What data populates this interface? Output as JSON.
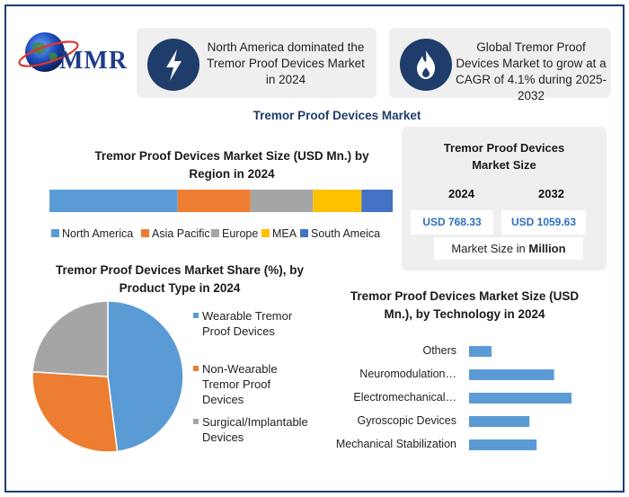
{
  "brand": {
    "name": "MMR"
  },
  "cards": [
    {
      "text": "North America dominated the Tremor Proof Devices Market in 2024",
      "icon": "lightning-icon"
    },
    {
      "text": "Global Tremor Proof Devices Market to grow at a CAGR of 4.1% during 2025-2032",
      "icon": "flame-icon"
    }
  ],
  "main_title": "Tremor Proof Devices Market",
  "market_size": {
    "title": "Tremor Proof Devices Market Size",
    "year1": "2024",
    "year2": "2032",
    "value1": "USD 768.33",
    "value2": "USD 1059.63",
    "unit_prefix": "Market Size in ",
    "unit_bold": "Million"
  },
  "colors": {
    "north_america": "#5b9bd5",
    "asia_pacific": "#ed7d31",
    "europe": "#a5a5a5",
    "mea": "#ffc000",
    "south_america": "#4472c4",
    "dark_navy": "#1f3d6b"
  },
  "chart_data": [
    {
      "type": "bar",
      "orientation": "horizontal-stacked",
      "title": "Tremor Proof Devices Market Size (USD Mn.) by Region in 2024",
      "series": [
        {
          "name": "North America",
          "values": [
            37
          ]
        },
        {
          "name": "Asia Pacific",
          "values": [
            21
          ]
        },
        {
          "name": "Europe",
          "values": [
            18
          ]
        },
        {
          "name": "MEA",
          "values": [
            14
          ]
        },
        {
          "name": "South Ameica",
          "values": [
            9
          ]
        }
      ],
      "legend": "bottom"
    },
    {
      "type": "pie",
      "title": "Tremor Proof Devices Market Share (%), by Product Type in 2024",
      "labels": [
        "Wearable Tremor Proof Devices",
        "Non-Wearable Tremor Proof Devices",
        "Surgical/Implantable Devices"
      ],
      "values": [
        48,
        28,
        24
      ],
      "legend": "right"
    },
    {
      "type": "bar",
      "orientation": "horizontal",
      "title": "Tremor Proof Devices Market Size (USD Mn.), by Technology in 2024",
      "categories": [
        "Others",
        "Neuromodulation…",
        "Electromechanical…",
        "Gyroscopic Devices",
        "Mechanical Stabilization"
      ],
      "values": [
        22,
        83,
        100,
        59,
        66
      ],
      "xlim": [
        0,
        100
      ],
      "grid": false
    }
  ]
}
